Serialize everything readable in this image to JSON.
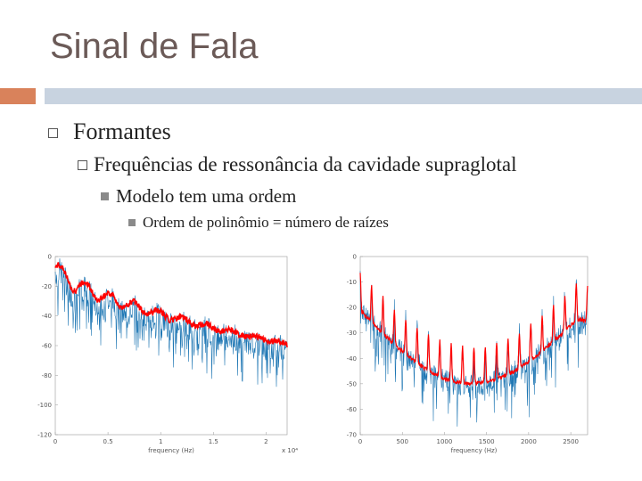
{
  "slide": {
    "title": "Sinal de Fala",
    "accent_color": "#d9825b",
    "bar_color": "#c8d3e0",
    "bullets": {
      "level1": "Formantes",
      "level2": "Frequências de ressonância da cavidade supraglotal",
      "level3": "Modelo tem uma ordem",
      "level4": "Ordem de polinômio = número de raízes"
    }
  },
  "chart_data": [
    {
      "type": "line",
      "xlabel": "frequency (Hz)",
      "x_scale_note": "x 10⁴",
      "xlim": [
        0,
        2.2
      ],
      "ylim": [
        -120,
        0
      ],
      "xticks": [
        "0",
        "0.5",
        "1",
        "1.5",
        "2"
      ],
      "yticks": [
        "0",
        "-20",
        "-40",
        "-60",
        "-80",
        "-100",
        "-120"
      ],
      "series": [
        {
          "color": "#1f77b4"
        },
        {
          "color": "#ff0000"
        }
      ]
    },
    {
      "type": "line",
      "xlabel": "frequency (Hz)",
      "xlim": [
        0,
        2700
      ],
      "ylim": [
        -70,
        0
      ],
      "xticks": [
        "0",
        "500",
        "1000",
        "1500",
        "2000",
        "2500"
      ],
      "yticks": [
        "0",
        "-10",
        "-20",
        "-30",
        "-40",
        "-50",
        "-60",
        "-70"
      ],
      "series": [
        {
          "color": "#1f77b4"
        },
        {
          "color": "#ff0000"
        }
      ]
    }
  ]
}
